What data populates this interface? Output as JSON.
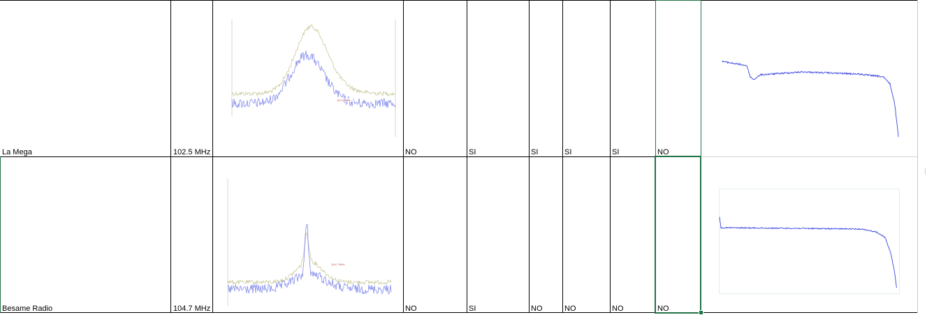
{
  "sheet": {
    "rows": [
      {
        "station": "La Mega",
        "frequency": "102.5 MHz",
        "values": [
          "NO",
          "SI",
          "SI",
          "SI",
          "SI",
          "NO"
        ],
        "spectrum_label": "102.5 MHz"
      },
      {
        "station": "Besame Radio",
        "frequency": "104.7 MHz",
        "values": [
          "NO",
          "SI",
          "NO",
          "NO",
          "NO",
          "NO"
        ],
        "spectrum_label": "104.7 MHz"
      }
    ]
  },
  "colors": {
    "grid": "#000000",
    "grid_light": "#d4d4d4",
    "selection": "#217346",
    "trace_blue": "#5a64e6",
    "trace_tan": "#c8c89b",
    "response_blue": "#3b46e0"
  }
}
